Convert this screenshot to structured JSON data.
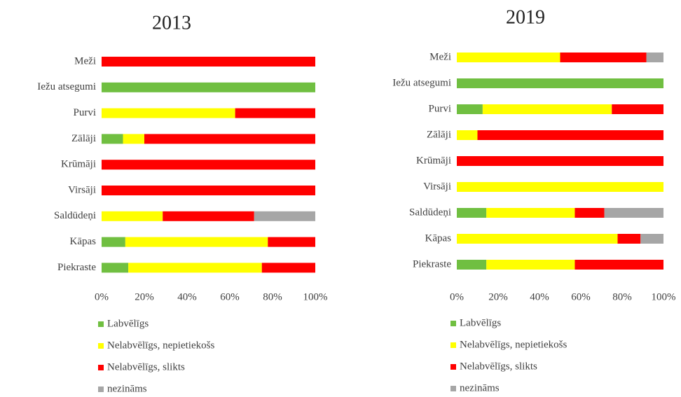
{
  "chart_data": [
    {
      "type": "stacked_barh",
      "title": "2013",
      "categories": [
        "Meži",
        "Iežu atsegumi",
        "Purvi",
        "Zālāji",
        "Krūmāji",
        "Virsāji",
        "Saldūdeņi",
        "Kāpas",
        "Piekraste"
      ],
      "series": [
        {
          "name": "Labvēlīgs",
          "color": "#70bf41",
          "values": [
            0,
            100,
            0,
            10,
            0,
            0,
            0,
            11.1,
            12.5
          ]
        },
        {
          "name": "Nelabvēlīgs, nepietiekošs",
          "color": "#ffff00",
          "values": [
            0,
            0,
            62.5,
            10,
            0,
            0,
            28.6,
            66.7,
            62.5
          ]
        },
        {
          "name": "Nelabvēlīgs, slikts",
          "color": "#ff0000",
          "values": [
            100,
            0,
            37.5,
            80,
            100,
            100,
            42.8,
            22.2,
            25
          ]
        },
        {
          "name": "nezināms",
          "color": "#a6a6a6",
          "values": [
            0,
            0,
            0,
            0,
            0,
            0,
            28.6,
            0,
            0
          ]
        }
      ],
      "xlim": [
        0,
        100
      ],
      "xticks": [
        {
          "value": 0,
          "label": "0%"
        },
        {
          "value": 20,
          "label": "20%"
        },
        {
          "value": 40,
          "label": "40%"
        },
        {
          "value": 60,
          "label": "60%"
        },
        {
          "value": 80,
          "label": "80%"
        },
        {
          "value": 100,
          "label": "100%"
        }
      ],
      "grid": false,
      "legend": "bottom"
    },
    {
      "type": "stacked_barh",
      "title": "2019",
      "categories": [
        "Meži",
        "Iežu atsegumi",
        "Purvi",
        "Zālāji",
        "Krūmāji",
        "Virsāji",
        "Saldūdeņi",
        "Kāpas",
        "Piekraste"
      ],
      "series": [
        {
          "name": "Labvēlīgs",
          "color": "#70bf41",
          "values": [
            0,
            100,
            12.5,
            0,
            0,
            0,
            14.3,
            0,
            14.3
          ]
        },
        {
          "name": "Nelabvēlīgs, nepietiekošs",
          "color": "#ffff00",
          "values": [
            50,
            0,
            62.5,
            10,
            0,
            100,
            42.8,
            77.8,
            42.8
          ]
        },
        {
          "name": "Nelabvēlīgs, slikts",
          "color": "#ff0000",
          "values": [
            41.7,
            0,
            25,
            90,
            100,
            0,
            14.3,
            11.1,
            42.9
          ]
        },
        {
          "name": "nezināms",
          "color": "#a6a6a6",
          "values": [
            8.3,
            0,
            0,
            0,
            0,
            0,
            28.6,
            11.1,
            0
          ]
        }
      ],
      "xlim": [
        0,
        100
      ],
      "xticks": [
        {
          "value": 0,
          "label": "0%"
        },
        {
          "value": 20,
          "label": "20%"
        },
        {
          "value": 40,
          "label": "40%"
        },
        {
          "value": 60,
          "label": "60%"
        },
        {
          "value": 80,
          "label": "80%"
        },
        {
          "value": 100,
          "label": "100%"
        }
      ],
      "grid": false,
      "legend": "bottom"
    }
  ]
}
